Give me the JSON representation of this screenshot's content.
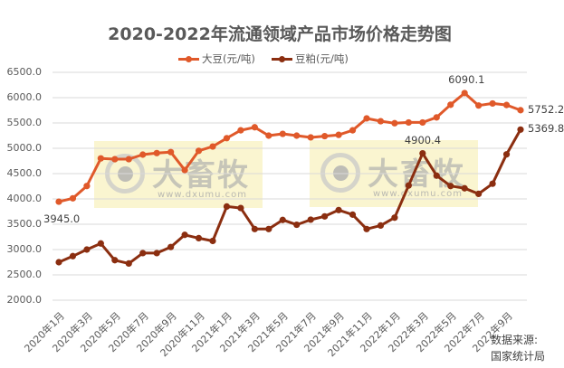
{
  "chart_data": {
    "type": "line",
    "title": "2020-2022年流通领域产品市场价格走势图",
    "xlabel": "",
    "ylabel": "",
    "ylim": [
      2000,
      6500
    ],
    "ytick_step": 500,
    "grid": true,
    "legend_position": "top",
    "x": [
      "2020年1月",
      "2020年2月",
      "2020年3月",
      "2020年4月",
      "2020年5月",
      "2020年6月",
      "2020年7月",
      "2020年8月",
      "2020年9月",
      "2020年10月",
      "2020年11月",
      "2020年12月",
      "2021年1月",
      "2021年2月",
      "2021年3月",
      "2021年4月",
      "2021年5月",
      "2021年6月",
      "2021年7月",
      "2021年8月",
      "2021年9月",
      "2021年10月",
      "2021年11月",
      "2021年12月",
      "2022年1月",
      "2022年2月",
      "2022年3月",
      "2022年4月",
      "2022年5月",
      "2022年6月",
      "2022年7月",
      "2022年8月",
      "2022年9月",
      "2022年10月"
    ],
    "x_tick_labels_shown": [
      "2020年1月",
      "2020年3月",
      "2020年5月",
      "2020年7月",
      "2020年9月",
      "2020年11月",
      "2021年1月",
      "2021年3月",
      "2021年5月",
      "2021年7月",
      "2021年9月",
      "2021年11月",
      "2022年1月",
      "2022年3月",
      "2022年5月",
      "2022年7月",
      "2022年9月"
    ],
    "y_tick_labels": [
      "6500.0",
      "6000.0",
      "5500.0",
      "5000.0",
      "4500.0",
      "4000.0",
      "3500.0",
      "3000.0",
      "2500.0",
      "2000.0"
    ],
    "series": [
      {
        "name": "大豆(元/吨)",
        "color": "#E0592A",
        "values": [
          3945.0,
          4012,
          4255,
          4800,
          4785,
          4785,
          4875,
          4905,
          4925,
          4570,
          4950,
          5035,
          5200,
          5355,
          5415,
          5250,
          5285,
          5250,
          5215,
          5240,
          5265,
          5355,
          5590,
          5535,
          5495,
          5510,
          5510,
          5610,
          5860,
          6090.1,
          5845,
          5885,
          5855,
          5752.2
        ]
      },
      {
        "name": "豆粕(元/吨)",
        "color": "#8B2E10",
        "values": [
          2750,
          2870,
          3000,
          3120,
          2790,
          2725,
          2930,
          2930,
          3050,
          3290,
          3225,
          3170,
          3850,
          3820,
          3405,
          3405,
          3585,
          3490,
          3590,
          3655,
          3780,
          3690,
          3405,
          3475,
          3630,
          4265,
          4900.4,
          4460,
          4255,
          4210,
          4100,
          4300,
          4880,
          5369.8
        ]
      }
    ],
    "annotations": [
      {
        "series": 0,
        "index": 0,
        "text": "3945.0"
      },
      {
        "series": 0,
        "index": 29,
        "text": "6090.1"
      },
      {
        "series": 0,
        "index": 33,
        "text": "5752.2"
      },
      {
        "series": 1,
        "index": 26,
        "text": "4900.4"
      },
      {
        "series": 1,
        "index": 33,
        "text": "5369.8"
      }
    ]
  },
  "title": "2020-2022年流通领域产品市场价格走势图",
  "legend": {
    "soybean": "大豆(元/吨)",
    "soybean_meal": "豆粕(元/吨)"
  },
  "watermark": {
    "brand": "大畜牧",
    "url": "www.dxumu.com"
  },
  "source": {
    "line1": "数据来源:",
    "line2": "国家统计局"
  }
}
